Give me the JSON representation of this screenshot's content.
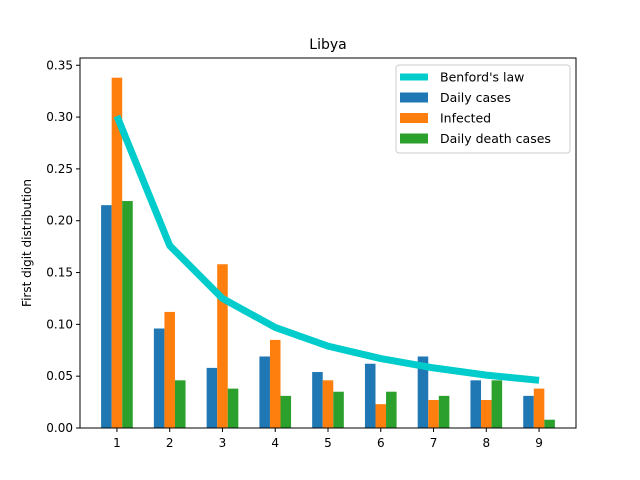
{
  "chart_data": {
    "type": "bar",
    "title": "Libya",
    "xlabel": "",
    "ylabel": "First digit distribution",
    "categories": [
      "1",
      "2",
      "3",
      "4",
      "5",
      "6",
      "7",
      "8",
      "9"
    ],
    "xlim": [
      0.3,
      9.7
    ],
    "ylim": [
      0,
      0.357
    ],
    "yticks": [
      "0.00",
      "0.05",
      "0.10",
      "0.15",
      "0.20",
      "0.25",
      "0.30",
      "0.35"
    ],
    "ytick_values": [
      0,
      0.05,
      0.1,
      0.15,
      0.2,
      0.25,
      0.3,
      0.35
    ],
    "grid": false,
    "legend_position": "top-right",
    "line": {
      "name": "Benford's law",
      "color": "#00cccc",
      "values": [
        0.301,
        0.176,
        0.125,
        0.097,
        0.079,
        0.067,
        0.058,
        0.051,
        0.046
      ]
    },
    "series": [
      {
        "name": "Daily cases",
        "color": "#1f77b4",
        "values": [
          0.215,
          0.096,
          0.058,
          0.069,
          0.054,
          0.062,
          0.069,
          0.046,
          0.031
        ]
      },
      {
        "name": "Infected",
        "color": "#ff7f0e",
        "values": [
          0.338,
          0.112,
          0.158,
          0.085,
          0.046,
          0.023,
          0.027,
          0.027,
          0.038
        ]
      },
      {
        "name": "Daily death cases",
        "color": "#2ca02c",
        "values": [
          0.219,
          0.046,
          0.038,
          0.031,
          0.035,
          0.035,
          0.031,
          0.046,
          0.008
        ]
      }
    ]
  }
}
